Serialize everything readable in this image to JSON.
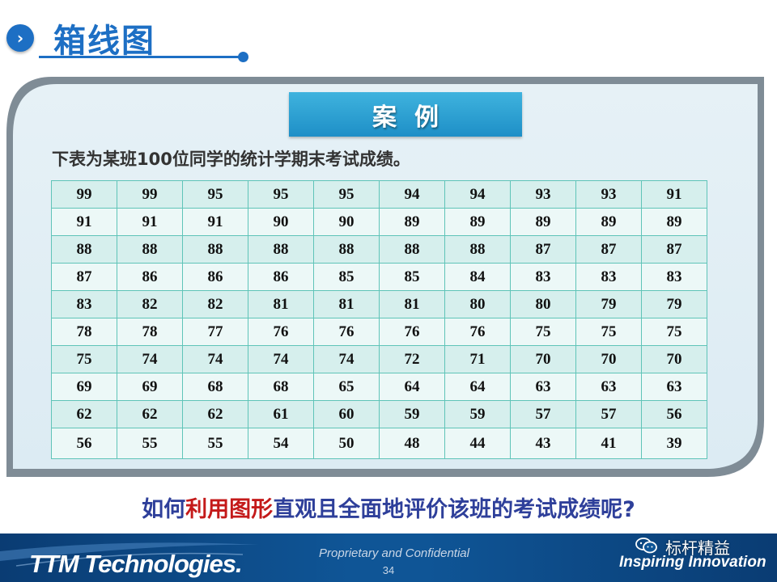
{
  "header": {
    "title": "箱线图",
    "icon": "chevron-right-icon"
  },
  "panel": {
    "case_label": "案例",
    "intro": "下表为某班100位同学的统计学期末考试成绩。"
  },
  "scores": [
    [
      "99",
      "99",
      "95",
      "95",
      "95",
      "94",
      "94",
      "93",
      "93",
      "91"
    ],
    [
      "91",
      "91",
      "91",
      "90",
      "90",
      "89",
      "89",
      "89",
      "89",
      "89"
    ],
    [
      "88",
      "88",
      "88",
      "88",
      "88",
      "88",
      "88",
      "87",
      "87",
      "87"
    ],
    [
      "87",
      "86",
      "86",
      "86",
      "85",
      "85",
      "84",
      "83",
      "83",
      "83"
    ],
    [
      "83",
      "82",
      "82",
      "81",
      "81",
      "81",
      "80",
      "80",
      "79",
      "79"
    ],
    [
      "78",
      "78",
      "77",
      "76",
      "76",
      "76",
      "76",
      "75",
      "75",
      "75"
    ],
    [
      "75",
      "74",
      "74",
      "74",
      "74",
      "72",
      "71",
      "70",
      "70",
      "70"
    ],
    [
      "69",
      "69",
      "68",
      "68",
      "65",
      "64",
      "64",
      "63",
      "63",
      "63"
    ],
    [
      "62",
      "62",
      "62",
      "61",
      "60",
      "59",
      "59",
      "57",
      "57",
      "56"
    ],
    [
      "56",
      "55",
      "55",
      "54",
      "50",
      "48",
      "44",
      "43",
      "41",
      "39"
    ]
  ],
  "question": {
    "part1": "如何",
    "highlight": "利用图形",
    "part2": "直观且全面地评价该班的考试成绩呢?"
  },
  "footer": {
    "logo": "TTM Technologies.",
    "confidential": "Proprietary and Confidential",
    "page_number": "34",
    "brand_cn": "标杆精益",
    "tagline": "Inspiring Innovation"
  },
  "colors": {
    "primary_blue": "#1d6fc4",
    "question_blue": "#2e3f9a",
    "highlight_red": "#c41a1a",
    "table_border": "#5fc4b8",
    "footer_bg": "#0f5596"
  }
}
